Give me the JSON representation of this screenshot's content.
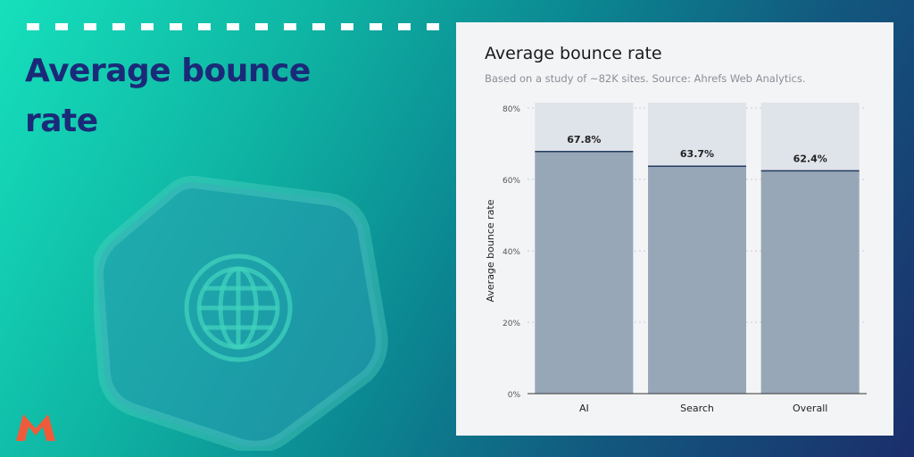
{
  "hero": {
    "title": "Average bounce rate"
  },
  "card": {
    "title": "Average bounce rate",
    "subtitle": "Based on a study of ~82K sites. Source: Ahrefs Web Analytics."
  },
  "icons": {
    "globe": "globe-icon",
    "logo": "brand-logo-icon"
  },
  "colors": {
    "accent_title": "#1b2a78",
    "bar_fill": "#98a7b8",
    "bar_track": "#dfe3ea",
    "bar_top_line": "#223a5e",
    "logo": "#ef5b3a"
  },
  "chart_data": {
    "type": "bar",
    "title": "Average bounce rate",
    "subtitle": "Based on a study of ~82K sites. Source: Ahrefs Web Analytics.",
    "categories": [
      "AI",
      "Search",
      "Overall"
    ],
    "values": [
      67.8,
      63.7,
      62.4
    ],
    "value_labels": [
      "67.8%",
      "63.7%",
      "62.4%"
    ],
    "xlabel": "",
    "ylabel": "Average bounce rate",
    "ylim": [
      0,
      80
    ],
    "yticks": [
      0,
      20,
      40,
      60,
      80
    ],
    "ytick_labels": [
      "0%",
      "20%",
      "40%",
      "60%",
      "80%"
    ],
    "grid": true,
    "legend": "none"
  }
}
